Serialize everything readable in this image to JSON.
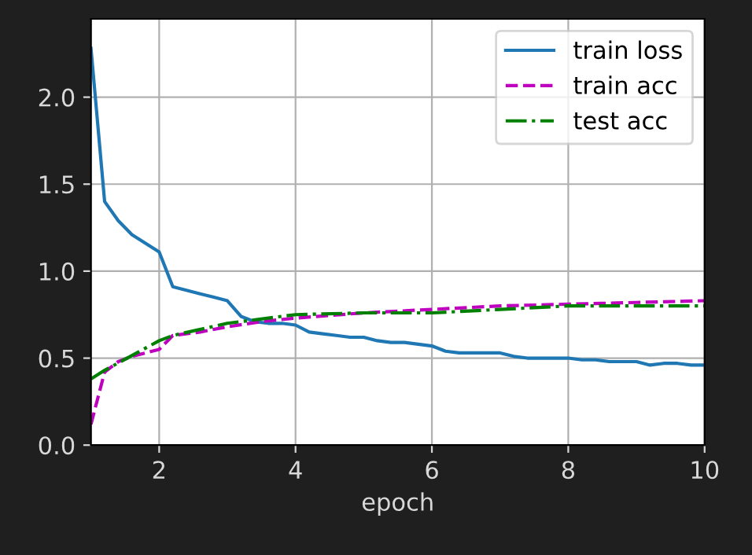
{
  "chart_data": {
    "type": "line",
    "xlabel": "epoch",
    "xlim": [
      1,
      10
    ],
    "ylim": [
      0,
      2.45
    ],
    "xticks": [
      2,
      4,
      6,
      8,
      10
    ],
    "yticks": [
      {
        "value": 0,
        "label": "0.0"
      },
      0.5,
      {
        "value": 1,
        "label": "1.0"
      },
      1.5,
      {
        "value": 2,
        "label": "2.0"
      }
    ],
    "grid": true,
    "legend": "top right",
    "series": [
      {
        "name": "train loss",
        "color": "#1f77b4",
        "line_style": "solid",
        "x": [
          1.0,
          1.2,
          1.4,
          1.6,
          1.8,
          2.0,
          2.2,
          2.4,
          2.6,
          2.8,
          3.0,
          3.2,
          3.4,
          3.6,
          3.8,
          4.0,
          4.2,
          4.4,
          4.6,
          4.8,
          5.0,
          5.2,
          5.4,
          5.6,
          5.8,
          6.0,
          6.2,
          6.4,
          6.6,
          6.8,
          7.0,
          7.2,
          7.4,
          7.6,
          7.8,
          8.0,
          8.2,
          8.4,
          8.6,
          8.8,
          9.0,
          9.2,
          9.4,
          9.6,
          9.8,
          10.0
        ],
        "values": [
          2.28,
          1.4,
          1.29,
          1.21,
          1.16,
          1.11,
          0.91,
          0.89,
          0.87,
          0.85,
          0.83,
          0.74,
          0.71,
          0.7,
          0.7,
          0.69,
          0.65,
          0.64,
          0.63,
          0.62,
          0.62,
          0.6,
          0.59,
          0.59,
          0.58,
          0.57,
          0.54,
          0.53,
          0.53,
          0.53,
          0.53,
          0.51,
          0.5,
          0.5,
          0.5,
          0.5,
          0.49,
          0.49,
          0.48,
          0.48,
          0.48,
          0.46,
          0.47,
          0.47,
          0.46,
          0.46
        ]
      },
      {
        "name": "train acc",
        "color": "#bf00bf",
        "line_style": "dashed",
        "x": [
          1.0,
          1.2,
          1.4,
          1.6,
          1.8,
          2.0,
          2.2,
          2.6,
          3.0,
          3.5,
          4.0,
          5.0,
          6.0,
          7.0,
          8.0,
          9.0,
          10.0
        ],
        "values": [
          0.12,
          0.42,
          0.48,
          0.51,
          0.53,
          0.55,
          0.63,
          0.65,
          0.68,
          0.71,
          0.73,
          0.76,
          0.78,
          0.8,
          0.81,
          0.82,
          0.83
        ]
      },
      {
        "name": "test acc",
        "color": "#008000",
        "line_style": "dashdot",
        "x": [
          1.0,
          1.2,
          2.0,
          2.2,
          3.0,
          4.0,
          5.0,
          6.0,
          7.0,
          8.0,
          9.0,
          10.0
        ],
        "values": [
          0.38,
          0.43,
          0.6,
          0.63,
          0.7,
          0.75,
          0.76,
          0.76,
          0.78,
          0.8,
          0.8,
          0.8
        ]
      }
    ]
  }
}
